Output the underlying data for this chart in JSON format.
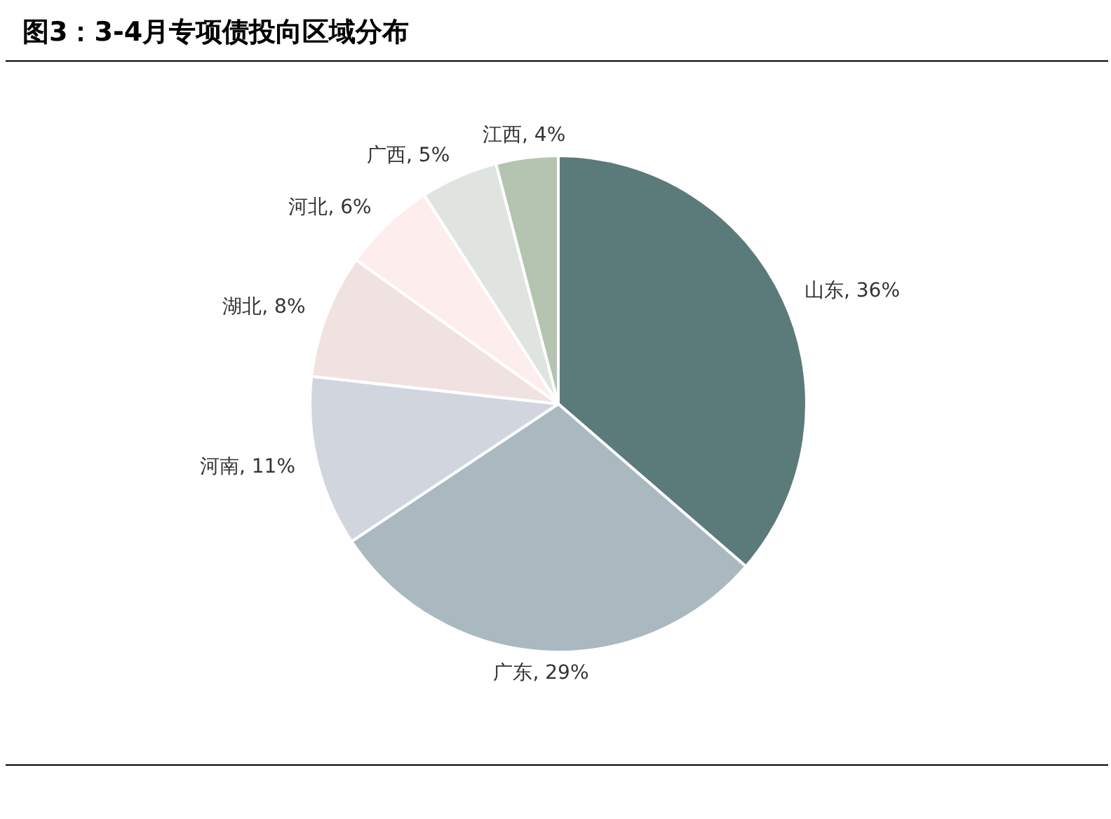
{
  "chart_data": {
    "type": "pie",
    "title": "图3：3-4月专项债投向区域分布",
    "categories": [
      "山东",
      "广东",
      "河南",
      "湖北",
      "河北",
      "广西",
      "江西"
    ],
    "values": [
      36,
      29,
      11,
      8,
      6,
      5,
      4
    ],
    "value_labels": [
      "36%",
      "29%",
      "11%",
      "8%",
      "6%",
      "5%",
      "4%"
    ],
    "colors": [
      "#5b7b7a",
      "#a9b9bf",
      "#d1d6de",
      "#f1e2e2",
      "#fdeeed",
      "#e0e4e0",
      "#b4c4b0"
    ],
    "legend": false
  }
}
